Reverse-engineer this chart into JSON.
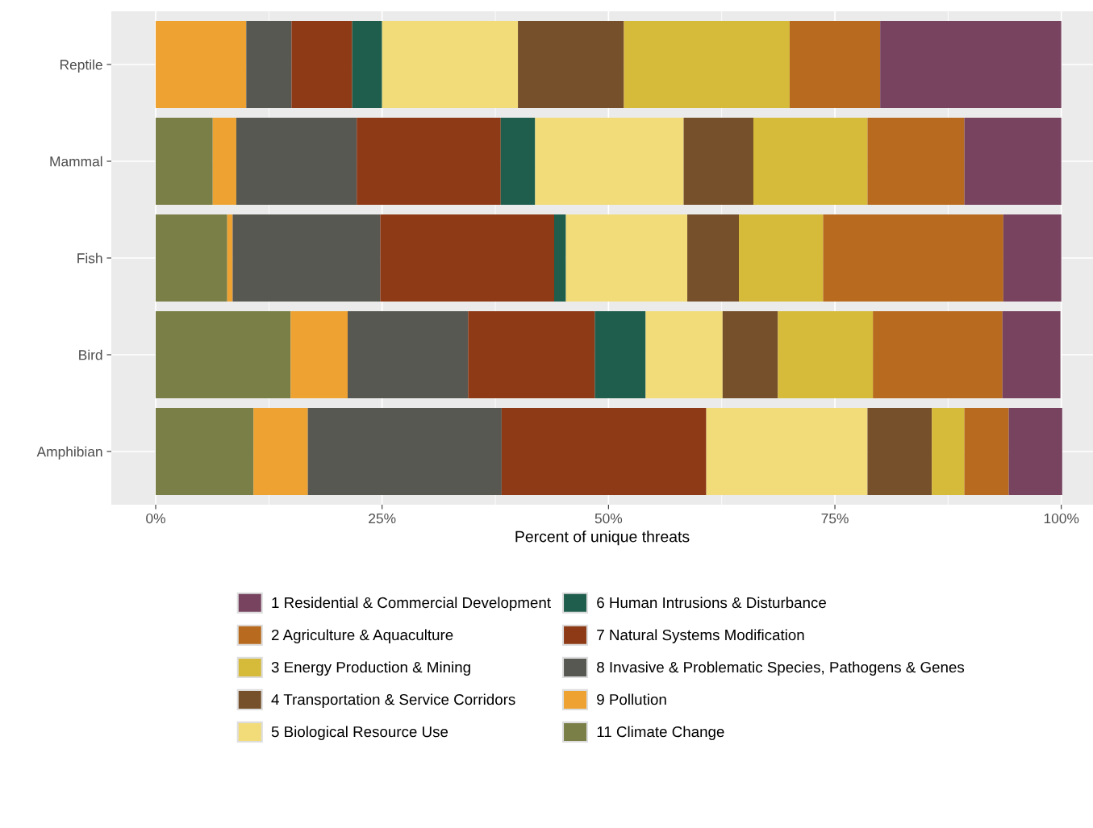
{
  "chart_data": {
    "type": "bar",
    "orientation": "horizontal",
    "stacked": true,
    "xlabel": "Percent of unique threats",
    "categories": [
      "Reptile",
      "Mammal",
      "Fish",
      "Bird",
      "Amphibian"
    ],
    "series": [
      {
        "name": "11 Climate Change",
        "color": "#7a7f47",
        "values": [
          0,
          6.3,
          7.9,
          14.9,
          10.8
        ]
      },
      {
        "name": "9 Pollution",
        "color": "#eda231",
        "values": [
          10,
          2.6,
          0.6,
          6.3,
          6.0
        ]
      },
      {
        "name": "8 Invasive & Problematic Species, Pathogens & Genes",
        "color": "#585852",
        "values": [
          5,
          13.3,
          16.3,
          13.3,
          21.4
        ]
      },
      {
        "name": "7 Natural Systems Modification",
        "color": "#8e3a16",
        "values": [
          6.7,
          15.9,
          19.2,
          14.0,
          22.6
        ]
      },
      {
        "name": "6 Human Intrusions & Disturbance",
        "color": "#1f5e4c",
        "values": [
          3.3,
          3.8,
          1.3,
          5.6,
          0
        ]
      },
      {
        "name": "5 Biological Resource Use",
        "color": "#f2dc7a",
        "values": [
          15,
          16.4,
          13.4,
          8.5,
          17.8
        ]
      },
      {
        "name": "4 Transportation & Service Corridors",
        "color": "#76502a",
        "values": [
          11.7,
          7.7,
          5.7,
          6.1,
          7.1
        ]
      },
      {
        "name": "3 Energy Production & Mining",
        "color": "#d6ba3a",
        "values": [
          18.3,
          12.6,
          9.3,
          10.5,
          3.6
        ]
      },
      {
        "name": "2 Agriculture & Aquaculture",
        "color": "#b86b1e",
        "values": [
          10,
          10.7,
          19.9,
          14.3,
          4.9
        ]
      },
      {
        "name": "1 Residential & Commercial Development",
        "color": "#77435f",
        "values": [
          20,
          10.7,
          6.4,
          6.4,
          5.9
        ]
      }
    ],
    "xlim": [
      -4.9,
      103.5
    ],
    "xticks": [
      {
        "value": 0,
        "label": "0%"
      },
      {
        "value": 25,
        "label": "25%"
      },
      {
        "value": 50,
        "label": "50%"
      },
      {
        "value": 75,
        "label": "75%"
      },
      {
        "value": 100,
        "label": "100%"
      }
    ],
    "grid": true,
    "legend": "bottom"
  }
}
